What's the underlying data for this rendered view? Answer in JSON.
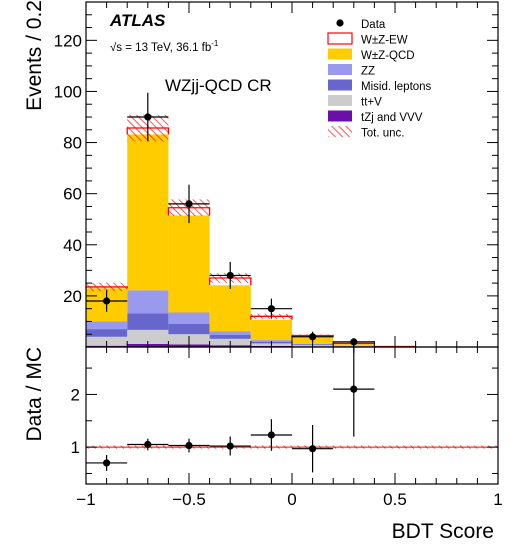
{
  "chart_data": [
    {
      "type": "bar",
      "stacked": true,
      "experiment_label": "ATLAS",
      "energy_label": "√s = 13 TeV, 36.1 fb",
      "energy_superscript": "-1",
      "region_label": "WZjj-QCD CR",
      "ylabel": "Events / 0.2",
      "xlabel": "",
      "xlim": [
        -1,
        1
      ],
      "ylim": [
        0,
        135
      ],
      "bin_edges": [
        -1.0,
        -0.8,
        -0.6,
        -0.4,
        -0.2,
        0.0,
        0.2,
        0.4,
        0.6
      ],
      "yticks": [
        20,
        40,
        60,
        80,
        100,
        120
      ],
      "legend_placement": "top-right",
      "series": [
        {
          "name": "tZj and VVV",
          "color": "#6a0fa8",
          "values": [
            0.5,
            1.2,
            1.0,
            0.7,
            0.4,
            0.2,
            0.1,
            0.0
          ]
        },
        {
          "name": "tt+V",
          "color": "#cccccc",
          "values": [
            3.5,
            5.5,
            4.0,
            2.5,
            1.0,
            0.5,
            0.2,
            0.0
          ]
        },
        {
          "name": "Misid. leptons",
          "color": "#6666cc",
          "values": [
            3.0,
            6.5,
            4.0,
            1.5,
            0.7,
            0.3,
            0.1,
            0.0
          ]
        },
        {
          "name": "ZZ",
          "color": "#9999ee",
          "values": [
            3.0,
            9.0,
            4.5,
            1.5,
            0.6,
            0.3,
            0.1,
            0.0
          ]
        },
        {
          "name": "W±Z-QCD",
          "color": "#ffcc00",
          "values": [
            13.0,
            61.0,
            38.0,
            18.0,
            8.0,
            2.5,
            0.6,
            0.1
          ]
        },
        {
          "name": "W±Z-EW",
          "color": "#ffffff",
          "edgecolor": "#ff0000",
          "values": [
            0.5,
            2.5,
            3.0,
            2.8,
            1.3,
            0.7,
            0.3,
            0.1
          ]
        }
      ],
      "uncertainty": {
        "name": "Tot. unc.",
        "color": "#ff0000",
        "relative": [
          0.07,
          0.06,
          0.06,
          0.07,
          0.08,
          0.09,
          0.1,
          0.12
        ]
      },
      "data": {
        "name": "Data",
        "x": [
          -0.9,
          -0.7,
          -0.5,
          -0.3,
          -0.1,
          0.1,
          0.3
        ],
        "y": [
          18,
          90,
          56,
          28,
          15,
          4,
          2
        ],
        "yerr": [
          4.2,
          9.5,
          7.5,
          5.3,
          3.9,
          2.0,
          1.4
        ]
      }
    },
    {
      "type": "scatter",
      "ylabel": "Data / MC",
      "xlabel": "BDT Score",
      "xlim": [
        -1,
        1
      ],
      "ylim": [
        0.3,
        2.9
      ],
      "yticks": [
        1,
        2
      ],
      "xticks": [
        -1,
        -0.5,
        0,
        0.5,
        1
      ],
      "x": [
        -0.9,
        -0.7,
        -0.5,
        -0.3,
        -0.1,
        0.1,
        0.3
      ],
      "y": [
        0.7,
        1.05,
        1.03,
        1.02,
        1.23,
        0.97,
        2.1
      ],
      "yerr": [
        0.15,
        0.11,
        0.13,
        0.18,
        0.3,
        0.45,
        0.9
      ],
      "xerr": 0.1,
      "reference_line": 1,
      "uncertainty_band": {
        "x_range": [
          -1,
          1
        ],
        "relative": 0.03
      }
    }
  ],
  "axis_text": {
    "top_yticks": [
      "20",
      "40",
      "60",
      "80",
      "100",
      "120"
    ],
    "ratio_yticks": [
      "1",
      "2"
    ],
    "xticks": [
      "−1",
      "−0.5",
      "0",
      "0.5",
      "1"
    ]
  }
}
